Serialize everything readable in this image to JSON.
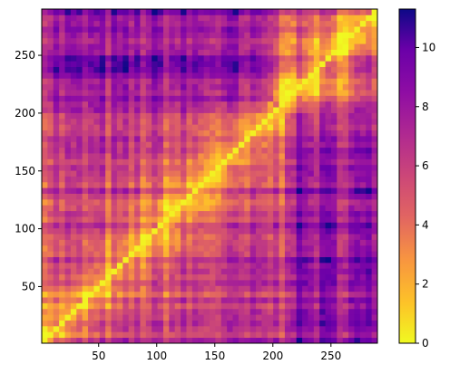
{
  "chart_data": {
    "type": "heatmap",
    "title": "",
    "xlabel": "",
    "ylabel": "",
    "colormap": "plasma_r",
    "matrix_size": 290,
    "xlim": [
      1,
      290
    ],
    "ylim": [
      1,
      290
    ],
    "x_ticks": [
      50,
      100,
      150,
      200,
      250
    ],
    "y_ticks": [
      50,
      100,
      150,
      200,
      250
    ],
    "x_tick_labels": [
      "50",
      "100",
      "150",
      "200",
      "250"
    ],
    "y_tick_labels": [
      "50",
      "100",
      "150",
      "200",
      "250"
    ],
    "colorbar": {
      "min": 0,
      "max": 11.3,
      "ticks": [
        0,
        2,
        4,
        6,
        8,
        10
      ],
      "tick_labels": [
        "0",
        "2",
        "4",
        "6",
        "8",
        "10"
      ]
    },
    "features": [
      {
        "description": "diagonal",
        "value": 0
      },
      {
        "x_range": [
          210,
          290
        ],
        "y_range": [
          1,
          170
        ],
        "value": 9
      },
      {
        "x_range": [
          1,
          200
        ],
        "y_range": [
          210,
          290
        ],
        "value": 8.5
      }
    ],
    "colors": {
      "low": "#f0f921",
      "high": "#0d0887"
    }
  }
}
